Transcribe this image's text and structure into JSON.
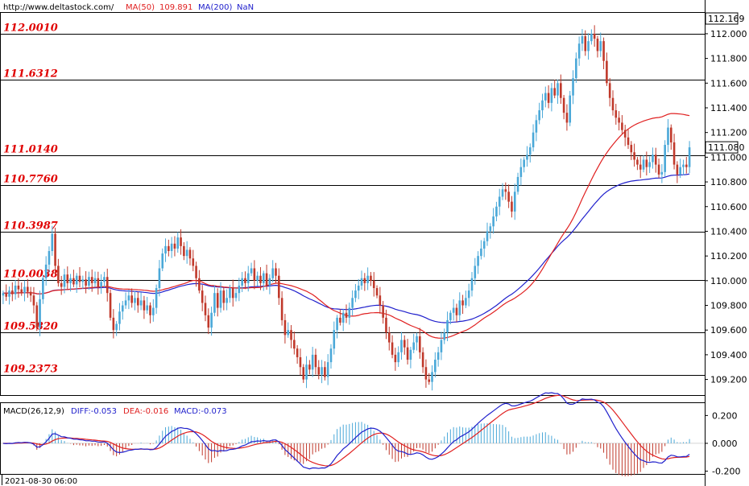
{
  "header": {
    "url": "http://www.deltastock.com/",
    "ma50_label": "MA(50)",
    "ma50_value": "109.891",
    "ma200_label": "MA(200)",
    "ma200_value": "NaN"
  },
  "price_axis": {
    "ticks": [
      "112.000",
      "111.800",
      "111.600",
      "111.400",
      "111.200",
      "111.000",
      "110.800",
      "110.600",
      "110.400",
      "110.200",
      "110.000",
      "109.800",
      "109.600",
      "109.400",
      "109.200"
    ],
    "top_label": "112.169",
    "current_label": "111.080"
  },
  "levels": [
    {
      "label": "112.0010",
      "value": 112.001
    },
    {
      "label": "111.6312",
      "value": 111.6312
    },
    {
      "label": "111.0140",
      "value": 111.014
    },
    {
      "label": "110.7760",
      "value": 110.776
    },
    {
      "label": "110.3987",
      "value": 110.3987
    },
    {
      "label": "110.0038",
      "value": 110.0038
    },
    {
      "label": "109.5820",
      "value": 109.582
    },
    {
      "label": "109.2373",
      "value": 109.2373
    }
  ],
  "macd_header": {
    "name": "MACD(26,12,9)",
    "diff": "DIFF:-0.053",
    "dea": "DEA:-0.016",
    "macd": "MACD:-0.073"
  },
  "macd_axis": {
    "ticks": [
      "0.200",
      "0.000",
      "-0.200"
    ]
  },
  "time_label": "2021-08-30 06:00",
  "colors": {
    "bull": "#4aa8d8",
    "bear": "#c0392b",
    "ma50": "#e02020",
    "ma200": "#2020cc",
    "diff": "#2020cc",
    "dea": "#e02020"
  },
  "chart_data": {
    "type": "candlestick",
    "y_range": [
      109.08,
      112.169
    ],
    "macd_range": [
      -0.22,
      0.26
    ],
    "close": [
      109.9,
      109.87,
      109.92,
      109.89,
      109.96,
      109.93,
      109.9,
      109.95,
      109.91,
      109.88,
      109.8,
      109.62,
      109.85,
      110.02,
      110.13,
      110.24,
      110.38,
      110.12,
      109.98,
      109.95,
      110.05,
      109.98,
      110.02,
      109.97,
      110.04,
      109.99,
      110.01,
      109.96,
      110.03,
      109.98,
      110.02,
      109.95,
      109.99,
      110.03,
      109.9,
      109.7,
      109.6,
      109.65,
      109.75,
      109.8,
      109.84,
      109.88,
      109.82,
      109.86,
      109.8,
      109.84,
      109.76,
      109.8,
      109.72,
      109.78,
      109.94,
      110.1,
      110.22,
      110.28,
      110.24,
      110.3,
      110.26,
      110.35,
      110.28,
      110.2,
      110.25,
      110.18,
      110.12,
      110.02,
      109.92,
      109.82,
      109.72,
      109.62,
      109.74,
      109.9,
      109.78,
      109.92,
      109.82,
      109.86,
      109.94,
      109.86,
      109.9,
      109.96,
      110.02,
      109.98,
      110.06,
      110.1,
      110.0,
      110.04,
      109.98,
      110.06,
      109.96,
      110.02,
      110.1,
      110.04,
      109.86,
      109.68,
      109.56,
      109.6,
      109.52,
      109.45,
      109.38,
      109.3,
      109.2,
      109.32,
      109.28,
      109.4,
      109.3,
      109.24,
      109.3,
      109.22,
      109.34,
      109.45,
      109.6,
      109.7,
      109.66,
      109.74,
      109.7,
      109.78,
      109.86,
      109.92,
      109.96,
      110.02,
      109.98,
      110.04,
      110.0,
      109.94,
      109.88,
      109.8,
      109.7,
      109.58,
      109.5,
      109.4,
      109.34,
      109.42,
      109.52,
      109.46,
      109.36,
      109.44,
      109.5,
      109.55,
      109.42,
      109.3,
      109.2,
      109.18,
      109.26,
      109.36,
      109.42,
      109.52,
      109.58,
      109.68,
      109.74,
      109.78,
      109.72,
      109.84,
      109.8,
      109.86,
      109.92,
      110.02,
      110.12,
      110.2,
      110.26,
      110.32,
      110.4,
      110.44,
      110.52,
      110.6,
      110.68,
      110.74,
      110.72,
      110.64,
      110.56,
      110.72,
      110.84,
      110.92,
      110.98,
      111.02,
      111.08,
      111.2,
      111.3,
      111.38,
      111.46,
      111.52,
      111.44,
      111.56,
      111.5,
      111.6,
      111.48,
      111.36,
      111.28,
      111.5,
      111.64,
      111.8,
      111.92,
      111.98,
      111.86,
      111.94,
      112.0,
      111.96,
      111.86,
      111.94,
      111.78,
      111.6,
      111.48,
      111.38,
      111.32,
      111.28,
      111.22,
      111.16,
      111.1,
      111.04,
      110.98,
      110.94,
      110.9,
      110.98,
      110.92,
      110.96,
      111.02,
      110.94,
      110.86,
      110.88,
      111.1,
      111.24,
      111.12,
      110.94,
      110.86,
      110.92,
      110.94,
      110.92,
      111.08
    ]
  }
}
